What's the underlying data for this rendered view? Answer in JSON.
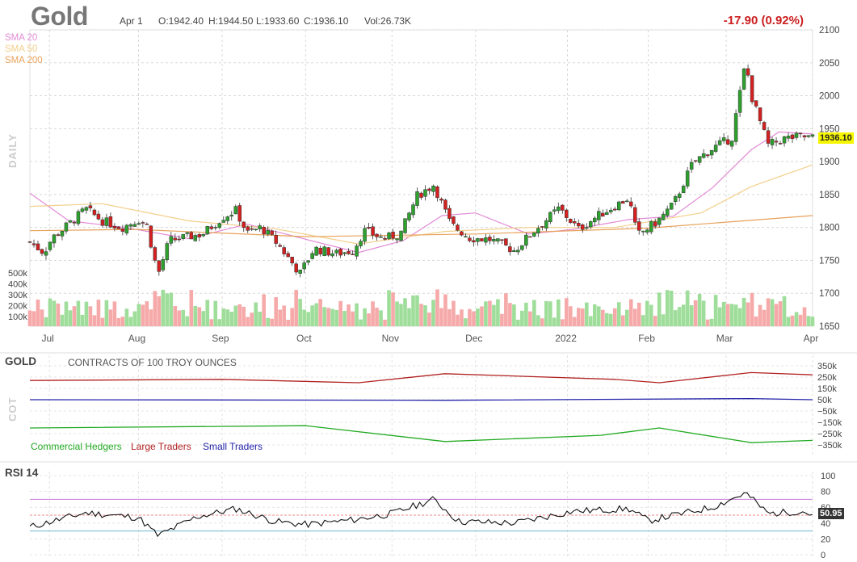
{
  "header": {
    "symbol": "Gold",
    "date": "Apr 1",
    "open": "O:1942.40",
    "high": "H:1944.50",
    "low": "L:1933.60",
    "close": "C:1936.10",
    "volume": "Vol:26.73K",
    "change": "-17.90 (0.92%)",
    "period": "DAILY"
  },
  "colors": {
    "up": "#2ea02e",
    "down": "#d42020",
    "sma20": "#e28ad6",
    "sma50": "#f2cf8a",
    "sma200": "#e8a15a",
    "vol_up": "#9fdd9a",
    "vol_down": "#f6a9a9",
    "commercial": "#22aa22",
    "large": "#b22222",
    "small": "#2222aa",
    "rsi": "#111111",
    "rsi_over": "#c777d6",
    "rsi_under": "#6fb3d2",
    "price_tag": "#f6f600"
  },
  "legend": {
    "sma20": "SMA 20",
    "sma50": "SMA 50",
    "sma200": "SMA 200"
  },
  "cot": {
    "title": "GOLD",
    "subtitle": "CONTRACTS OF 100 TROY OUNCES",
    "label": "COT",
    "legend_commercial": "Commercial Hedgers",
    "legend_large": "Large Traders",
    "legend_small": "Small Traders",
    "ticks": [
      "350k",
      "250k",
      "150k",
      "50k",
      "−50k",
      "−150k",
      "−250k",
      "−350k"
    ]
  },
  "rsi": {
    "title": "RSI 14",
    "value": "50.95",
    "ticks": [
      "100",
      "80",
      "60",
      "40",
      "20",
      "0"
    ]
  },
  "price_tag": "1936.10",
  "chart_data": [
    {
      "type": "candlestick",
      "title": "Gold",
      "price_ticks": [
        "2100",
        "2050",
        "2000",
        "1950",
        "1900",
        "1850",
        "1800",
        "1750",
        "1700",
        "1650"
      ],
      "ylim": [
        1650,
        2100
      ],
      "volume_ticks": [
        "500k",
        "400k",
        "300k",
        "200k",
        "100k"
      ],
      "x_labels": [
        "Jul",
        "Aug",
        "Sep",
        "Oct",
        "Nov",
        "Dec",
        "2022",
        "Feb",
        "Mar",
        "Apr"
      ],
      "x_label_dates": [
        "2021-07-01",
        "2021-08-02",
        "2021-09-01",
        "2021-10-01",
        "2021-11-01",
        "2021-12-01",
        "2022-01-03",
        "2022-02-01",
        "2022-03-01",
        "2022-04-01"
      ],
      "date_range": [
        "2021-06-24",
        "2022-04-01"
      ],
      "close_path": [
        [
          "2021-06-24",
          1778
        ],
        [
          "2021-06-29",
          1762
        ],
        [
          "2021-07-02",
          1784
        ],
        [
          "2021-07-08",
          1805
        ],
        [
          "2021-07-14",
          1828
        ],
        [
          "2021-07-20",
          1810
        ],
        [
          "2021-07-27",
          1800
        ],
        [
          "2021-08-02",
          1812
        ],
        [
          "2021-08-05",
          1803
        ],
        [
          "2021-08-09",
          1728
        ],
        [
          "2021-08-13",
          1780
        ],
        [
          "2021-08-19",
          1785
        ],
        [
          "2021-08-25",
          1790
        ],
        [
          "2021-09-01",
          1815
        ],
        [
          "2021-09-06",
          1826
        ],
        [
          "2021-09-10",
          1791
        ],
        [
          "2021-09-15",
          1800
        ],
        [
          "2021-09-21",
          1775
        ],
        [
          "2021-09-29",
          1730
        ],
        [
          "2021-10-04",
          1768
        ],
        [
          "2021-10-12",
          1760
        ],
        [
          "2021-10-18",
          1765
        ],
        [
          "2021-10-22",
          1795
        ],
        [
          "2021-10-29",
          1783
        ],
        [
          "2021-11-04",
          1790
        ],
        [
          "2021-11-10",
          1848
        ],
        [
          "2021-11-16",
          1865
        ],
        [
          "2021-11-22",
          1805
        ],
        [
          "2021-11-29",
          1784
        ],
        [
          "2021-12-06",
          1782
        ],
        [
          "2021-12-15",
          1765
        ],
        [
          "2021-12-22",
          1795
        ],
        [
          "2021-12-31",
          1829
        ],
        [
          "2022-01-07",
          1797
        ],
        [
          "2022-01-14",
          1818
        ],
        [
          "2022-01-25",
          1845
        ],
        [
          "2022-01-28",
          1788
        ],
        [
          "2022-02-04",
          1808
        ],
        [
          "2022-02-10",
          1835
        ],
        [
          "2022-02-17",
          1898
        ],
        [
          "2022-02-24",
          1920
        ],
        [
          "2022-03-03",
          1936
        ],
        [
          "2022-03-08",
          2052
        ],
        [
          "2022-03-10",
          2000
        ],
        [
          "2022-03-16",
          1925
        ],
        [
          "2022-03-22",
          1935
        ],
        [
          "2022-03-28",
          1938
        ],
        [
          "2022-04-01",
          1936
        ]
      ],
      "sma20": [
        [
          "2021-06-24",
          1852
        ],
        [
          "2021-07-08",
          1810
        ],
        [
          "2021-07-28",
          1800
        ],
        [
          "2021-08-20",
          1783
        ],
        [
          "2021-09-10",
          1805
        ],
        [
          "2021-10-01",
          1782
        ],
        [
          "2021-10-20",
          1762
        ],
        [
          "2021-11-05",
          1780
        ],
        [
          "2021-11-19",
          1818
        ],
        [
          "2021-12-01",
          1822
        ],
        [
          "2021-12-20",
          1790
        ],
        [
          "2022-01-05",
          1797
        ],
        [
          "2022-01-25",
          1812
        ],
        [
          "2022-02-10",
          1817
        ],
        [
          "2022-02-24",
          1860
        ],
        [
          "2022-03-10",
          1918
        ],
        [
          "2022-03-20",
          1945
        ],
        [
          "2022-04-01",
          1942
        ]
      ],
      "sma50": [
        [
          "2021-06-24",
          1832
        ],
        [
          "2021-07-20",
          1836
        ],
        [
          "2021-08-20",
          1810
        ],
        [
          "2021-09-20",
          1798
        ],
        [
          "2021-10-20",
          1775
        ],
        [
          "2021-11-20",
          1794
        ],
        [
          "2021-12-20",
          1800
        ],
        [
          "2022-01-20",
          1800
        ],
        [
          "2022-02-20",
          1822
        ],
        [
          "2022-03-10",
          1862
        ],
        [
          "2022-04-01",
          1895
        ]
      ],
      "sma200": [
        [
          "2021-06-24",
          1795
        ],
        [
          "2021-08-01",
          1797
        ],
        [
          "2021-10-01",
          1786
        ],
        [
          "2021-12-01",
          1790
        ],
        [
          "2022-02-01",
          1799
        ],
        [
          "2022-03-01",
          1808
        ],
        [
          "2022-04-01",
          1818
        ]
      ]
    },
    {
      "type": "line",
      "title": "GOLD",
      "ylim": [
        -350000,
        350000
      ],
      "series": [
        {
          "name": "Large Traders",
          "points": [
            [
              "2021-06-24",
              220000
            ],
            [
              "2021-09-01",
              230000
            ],
            [
              "2021-10-20",
              200000
            ],
            [
              "2021-11-20",
              280000
            ],
            [
              "2022-01-20",
              230000
            ],
            [
              "2022-02-05",
              200000
            ],
            [
              "2022-03-10",
              290000
            ],
            [
              "2022-04-01",
              270000
            ]
          ]
        },
        {
          "name": "Small Traders",
          "points": [
            [
              "2021-06-24",
              50000
            ],
            [
              "2021-11-20",
              45000
            ],
            [
              "2022-03-10",
              60000
            ],
            [
              "2022-04-01",
              50000
            ]
          ]
        },
        {
          "name": "Commercial Hedgers",
          "points": [
            [
              "2021-06-24",
              -200000
            ],
            [
              "2021-10-01",
              -180000
            ],
            [
              "2021-11-20",
              -320000
            ],
            [
              "2022-01-15",
              -265000
            ],
            [
              "2022-02-05",
              -200000
            ],
            [
              "2022-03-10",
              -330000
            ],
            [
              "2022-04-01",
              -310000
            ]
          ]
        }
      ]
    },
    {
      "type": "line",
      "title": "RSI 14",
      "ylim": [
        0,
        100
      ],
      "levels": [
        70,
        50,
        30
      ],
      "series": [
        {
          "name": "",
          "points": [
            [
              "2021-06-24",
              35
            ],
            [
              "2021-07-14",
              53
            ],
            [
              "2021-08-02",
              47
            ],
            [
              "2021-08-09",
              24
            ],
            [
              "2021-08-23",
              48
            ],
            [
              "2021-09-06",
              58
            ],
            [
              "2021-09-20",
              42
            ],
            [
              "2021-10-01",
              38
            ],
            [
              "2021-10-18",
              44
            ],
            [
              "2021-11-01",
              52
            ],
            [
              "2021-11-16",
              70
            ],
            [
              "2021-11-25",
              42
            ],
            [
              "2021-12-15",
              40
            ],
            [
              "2022-01-05",
              55
            ],
            [
              "2022-01-25",
              58
            ],
            [
              "2022-02-01",
              43
            ],
            [
              "2022-02-24",
              60
            ],
            [
              "2022-03-08",
              78
            ],
            [
              "2022-03-16",
              52
            ],
            [
              "2022-03-28",
              55
            ],
            [
              "2022-04-01",
              50.95
            ]
          ]
        }
      ]
    }
  ]
}
